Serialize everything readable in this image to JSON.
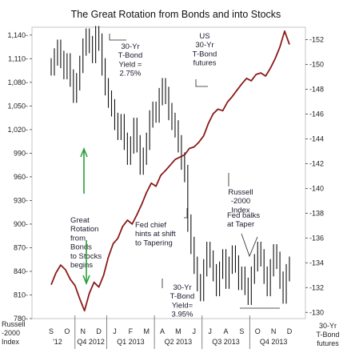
{
  "chart_data": {
    "type": "line",
    "title": "The Great Rotation from Bonds and into Stocks",
    "months": [
      "S",
      "O",
      "N",
      "D",
      "J",
      "F",
      "M",
      "A",
      "M",
      "J",
      "J",
      "A",
      "S",
      "O",
      "N",
      "D"
    ],
    "quarters": [
      "'12",
      "Q4 2012",
      "Q1 2013",
      "Q2 2013",
      "Q3 2013",
      "Q4 2013"
    ],
    "left_axis": {
      "ticks": [
        780,
        810,
        840,
        870,
        900,
        930,
        960,
        990,
        1020,
        1050,
        1080,
        1110,
        1140
      ],
      "range": [
        780,
        1150
      ]
    },
    "right_axis": {
      "ticks": [
        130,
        132,
        134,
        136,
        138,
        140,
        142,
        144,
        146,
        148,
        150,
        152
      ],
      "range": [
        129.5,
        153
      ]
    },
    "corner_labels": {
      "left": [
        "Russell",
        "-2000",
        "Index"
      ],
      "right": [
        "30-Yr",
        "T-Bond",
        "futures"
      ]
    },
    "series": [
      {
        "name": "Russell-2000 Index",
        "color": "#8b1a1a",
        "axis": "left",
        "x": [
          0,
          0.3,
          0.6,
          0.9,
          1.2,
          1.5,
          1.8,
          2.1,
          2.4,
          2.7,
          3.0,
          3.3,
          3.6,
          3.9,
          4.2,
          4.5,
          4.8,
          5.1,
          5.4,
          5.7,
          6.0,
          6.3,
          6.6,
          6.9,
          7.2,
          7.5,
          7.8,
          8.1,
          8.4,
          8.7,
          9.0,
          9.3,
          9.6,
          9.9,
          10.2,
          10.5,
          10.8,
          11.1,
          11.4,
          11.7,
          12.0,
          12.3,
          12.6,
          12.9,
          13.2,
          13.5,
          13.8,
          14.1,
          14.4,
          14.7,
          15.0
        ],
        "y": [
          823,
          838,
          848,
          842,
          830,
          822,
          805,
          790,
          812,
          826,
          820,
          835,
          858,
          875,
          882,
          897,
          905,
          900,
          912,
          925,
          940,
          952,
          948,
          962,
          968,
          975,
          982,
          985,
          988,
          996,
          998,
          1004,
          1012,
          1028,
          1040,
          1046,
          1044,
          1055,
          1062,
          1070,
          1078,
          1085,
          1082,
          1090,
          1092,
          1088,
          1098,
          1110,
          1125,
          1145,
          1128
        ]
      },
      {
        "name": "30-Yr T-Bond futures",
        "color": "#111111",
        "axis": "right",
        "x": [
          0,
          0.2,
          0.4,
          0.6,
          0.8,
          1.0,
          1.2,
          1.4,
          1.6,
          1.8,
          2.0,
          2.2,
          2.4,
          2.6,
          2.8,
          3.0,
          3.2,
          3.4,
          3.6,
          3.8,
          4.0,
          4.2,
          4.4,
          4.6,
          4.8,
          5.0,
          5.2,
          5.4,
          5.6,
          5.8,
          6.0,
          6.2,
          6.4,
          6.6,
          6.8,
          7.0,
          7.2,
          7.4,
          7.6,
          7.8,
          8.0,
          8.2,
          8.4,
          8.6,
          8.8,
          9.0,
          9.2,
          9.4,
          9.6,
          9.8,
          10.0,
          10.2,
          10.4,
          10.6,
          10.8,
          11.0,
          11.2,
          11.4,
          11.6,
          11.8,
          12.0,
          12.2,
          12.4,
          12.6,
          12.8,
          13.0,
          13.2,
          13.4,
          13.6,
          13.8,
          14.0,
          14.2,
          14.4,
          14.6,
          14.8,
          15.0
        ],
        "y": [
          149.8,
          150.6,
          151.3,
          150.4,
          149.5,
          150.2,
          148.9,
          147.6,
          148.6,
          150.0,
          151.4,
          152.2,
          151.6,
          150.8,
          152.4,
          151.8,
          149.8,
          148.2,
          147.2,
          146.5,
          145.4,
          144.6,
          145.3,
          143.8,
          142.6,
          143.5,
          145.0,
          143.6,
          141.8,
          142.6,
          143.8,
          145.6,
          146.3,
          146.0,
          147.4,
          148.2,
          147.5,
          146.2,
          145.4,
          144.8,
          143.6,
          142.2,
          141.2,
          137.2,
          135.4,
          133.8,
          132.4,
          131.6,
          133.6,
          135.0,
          134.3,
          133.2,
          132.0,
          133.4,
          134.4,
          132.6,
          133.8,
          134.7,
          133.9,
          132.5,
          133.0,
          132.1,
          131.3,
          133.0,
          134.0,
          135.0,
          134.4,
          133.0,
          132.0,
          133.6,
          134.8,
          134.2,
          132.6,
          131.4,
          133.2,
          133.8
        ]
      }
    ],
    "annotations": [
      {
        "lines": [
          "30-Yr",
          "T-Bond",
          "Yield =",
          "2.75%"
        ]
      },
      {
        "lines": [
          "US",
          "30-Yr",
          "T-Bond",
          "futures"
        ]
      },
      {
        "lines": [
          "Great",
          "Rotation",
          "from",
          "Bonds",
          "to Stocks",
          "begins"
        ]
      },
      {
        "lines": [
          "Russell",
          "-2000",
          "Index"
        ]
      },
      {
        "lines": [
          "Fed chief",
          "hints at shift",
          "to Tapering"
        ]
      },
      {
        "lines": [
          "Fed balks",
          "at Taper"
        ]
      },
      {
        "lines": [
          "30-Yr",
          "T-Bond",
          "Yield=",
          "3.95%"
        ]
      }
    ]
  }
}
